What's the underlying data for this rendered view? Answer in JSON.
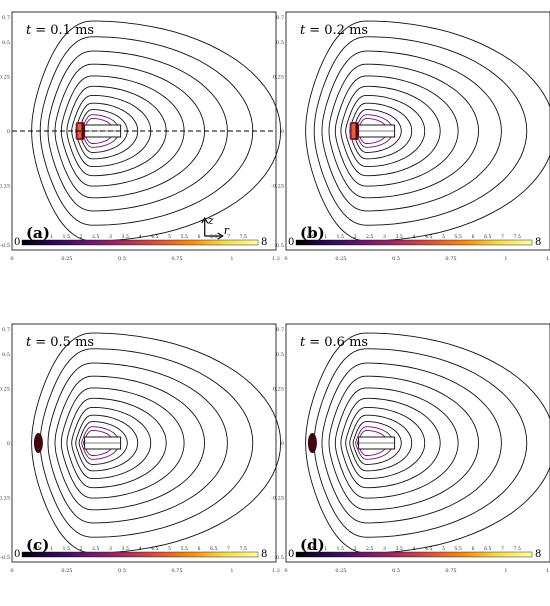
{
  "colors": {
    "contour": "#111111",
    "cmap": [
      "#000004",
      "#2d0b59",
      "#6a176e",
      "#a52c60",
      "#dd513a",
      "#f98e09",
      "#f5db4b",
      "#fcffa4"
    ],
    "blob_dark": "#3d0714",
    "blob_mid": "#8a1c3c",
    "blob_hot": "#e0603a"
  },
  "axis": {
    "y_ticks": [
      "0.7",
      "0.5",
      "0.25",
      "0",
      "-0.25",
      "-0.5"
    ],
    "x_ticks": [
      "0",
      "0.25",
      "0.5",
      "0.75",
      "1",
      "1.2"
    ]
  },
  "colorbar": {
    "min_label": "0",
    "max_label": "8",
    "ticks": [
      "0.5",
      "1",
      "1.5",
      "2",
      "2.5",
      "3",
      "3.5",
      "4",
      "4.5",
      "5",
      "5.5",
      "6",
      "6.5",
      "7",
      "7.5"
    ]
  },
  "panels": [
    {
      "label": "(a)",
      "time_var": "t",
      "time_value": "= 0.1 ms",
      "frame": "a",
      "show_axis_line": true,
      "show_coord_icon": true
    },
    {
      "label": "(b)",
      "time_var": "t",
      "time_value": "= 0.2 ms",
      "frame": "b",
      "show_axis_line": false,
      "show_coord_icon": false
    },
    {
      "label": "(c)",
      "time_var": "t",
      "time_value": "= 0.5 ms",
      "frame": "c",
      "show_axis_line": false,
      "show_coord_icon": false
    },
    {
      "label": "(d)",
      "time_var": "t",
      "time_value": "= 0.6 ms",
      "frame": "d",
      "show_axis_line": false,
      "show_coord_icon": false
    }
  ],
  "coord_axes": {
    "z": "z",
    "r": "r"
  }
}
